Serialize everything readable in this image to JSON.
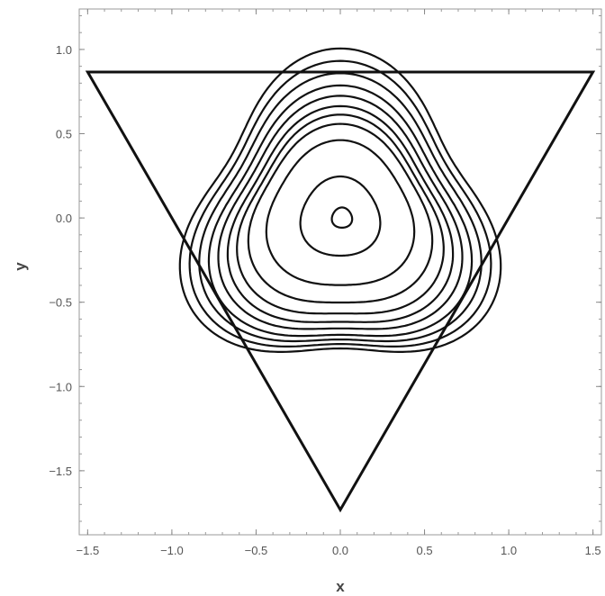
{
  "chart_data": {
    "type": "contour",
    "xlabel": "x",
    "ylabel": "y",
    "xlim": [
      -1.55,
      1.55
    ],
    "ylim": [
      -1.88,
      1.24
    ],
    "xticks": [
      {
        "value": -1.5,
        "label": "−1.5"
      },
      {
        "value": -1.0,
        "label": "−1.0"
      },
      {
        "value": -0.5,
        "label": "−0.5"
      },
      {
        "value": 0.0,
        "label": "0.0"
      },
      {
        "value": 0.5,
        "label": "0.5"
      },
      {
        "value": 1.0,
        "label": "1.0"
      },
      {
        "value": 1.5,
        "label": "1.5"
      }
    ],
    "yticks": [
      {
        "value": 1.0,
        "label": "1.0"
      },
      {
        "value": 0.5,
        "label": "0.5"
      },
      {
        "value": 0.0,
        "label": "0.0"
      },
      {
        "value": -0.5,
        "label": "−0.5"
      },
      {
        "value": -1.0,
        "label": "−1.0"
      },
      {
        "value": -1.5,
        "label": "−1.5"
      }
    ],
    "boundary": [
      [
        -1.5,
        0.866
      ],
      [
        1.5,
        0.866
      ],
      [
        0.0,
        -1.732
      ]
    ],
    "contours": [
      {
        "r0": 0.06,
        "amp": 0.04,
        "cx": 0.01,
        "cy": 0.0
      },
      {
        "r0": 0.235,
        "amp": 0.05,
        "cx": 0.0,
        "cy": 0.0
      },
      {
        "r0": 0.43,
        "amp": 0.08,
        "cx": 0.0,
        "cy": 0.0
      },
      {
        "r0": 0.53,
        "amp": 0.1,
        "cx": 0.0,
        "cy": -0.02
      },
      {
        "r0": 0.59,
        "amp": 0.12,
        "cx": 0.0,
        "cy": -0.04
      },
      {
        "r0": 0.64,
        "amp": 0.13,
        "cx": 0.0,
        "cy": -0.05
      },
      {
        "r0": 0.69,
        "amp": 0.14,
        "cx": 0.0,
        "cy": -0.05
      },
      {
        "r0": 0.74,
        "amp": 0.15,
        "cx": 0.0,
        "cy": -0.05
      },
      {
        "r0": 0.79,
        "amp": 0.16,
        "cx": 0.0,
        "cy": -0.04
      },
      {
        "r0": 0.84,
        "amp": 0.17,
        "cx": 0.0,
        "cy": -0.03
      },
      {
        "r0": 0.89,
        "amp": 0.18,
        "cx": 0.0,
        "cy": -0.02
      }
    ],
    "grid": false,
    "frame": true
  }
}
